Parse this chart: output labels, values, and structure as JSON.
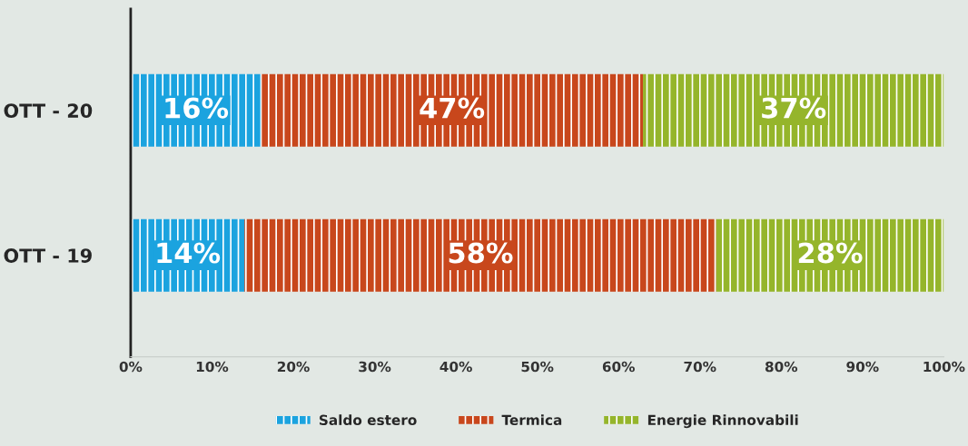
{
  "chart_data": {
    "type": "bar",
    "orientation": "horizontal",
    "stacked": true,
    "categories": [
      "OTT - 20",
      "OTT - 19"
    ],
    "series": [
      {
        "name": "Saldo estero",
        "color": "#1ba3df",
        "values": [
          16,
          14
        ],
        "value_labels": [
          "16%",
          "14%"
        ]
      },
      {
        "name": "Termica",
        "color": "#c8471c",
        "values": [
          47,
          58
        ],
        "value_labels": [
          "47%",
          "58%"
        ]
      },
      {
        "name": "Energie Rinnovabili",
        "color": "#95b52b",
        "values": [
          37,
          28
        ],
        "value_labels": [
          "37%",
          "28%"
        ]
      }
    ],
    "xlim": [
      0,
      100
    ],
    "xticks": [
      {
        "value": 0,
        "label": "0%"
      },
      {
        "value": 10,
        "label": "10%"
      },
      {
        "value": 20,
        "label": "20%"
      },
      {
        "value": 30,
        "label": "30%"
      },
      {
        "value": 40,
        "label": "40%"
      },
      {
        "value": 50,
        "label": "50%"
      },
      {
        "value": 60,
        "label": "60%"
      },
      {
        "value": 70,
        "label": "70%"
      },
      {
        "value": 80,
        "label": "80%"
      },
      {
        "value": 90,
        "label": "90%"
      },
      {
        "value": 100,
        "label": "100%"
      }
    ],
    "grid": false,
    "legend": "bottom"
  }
}
